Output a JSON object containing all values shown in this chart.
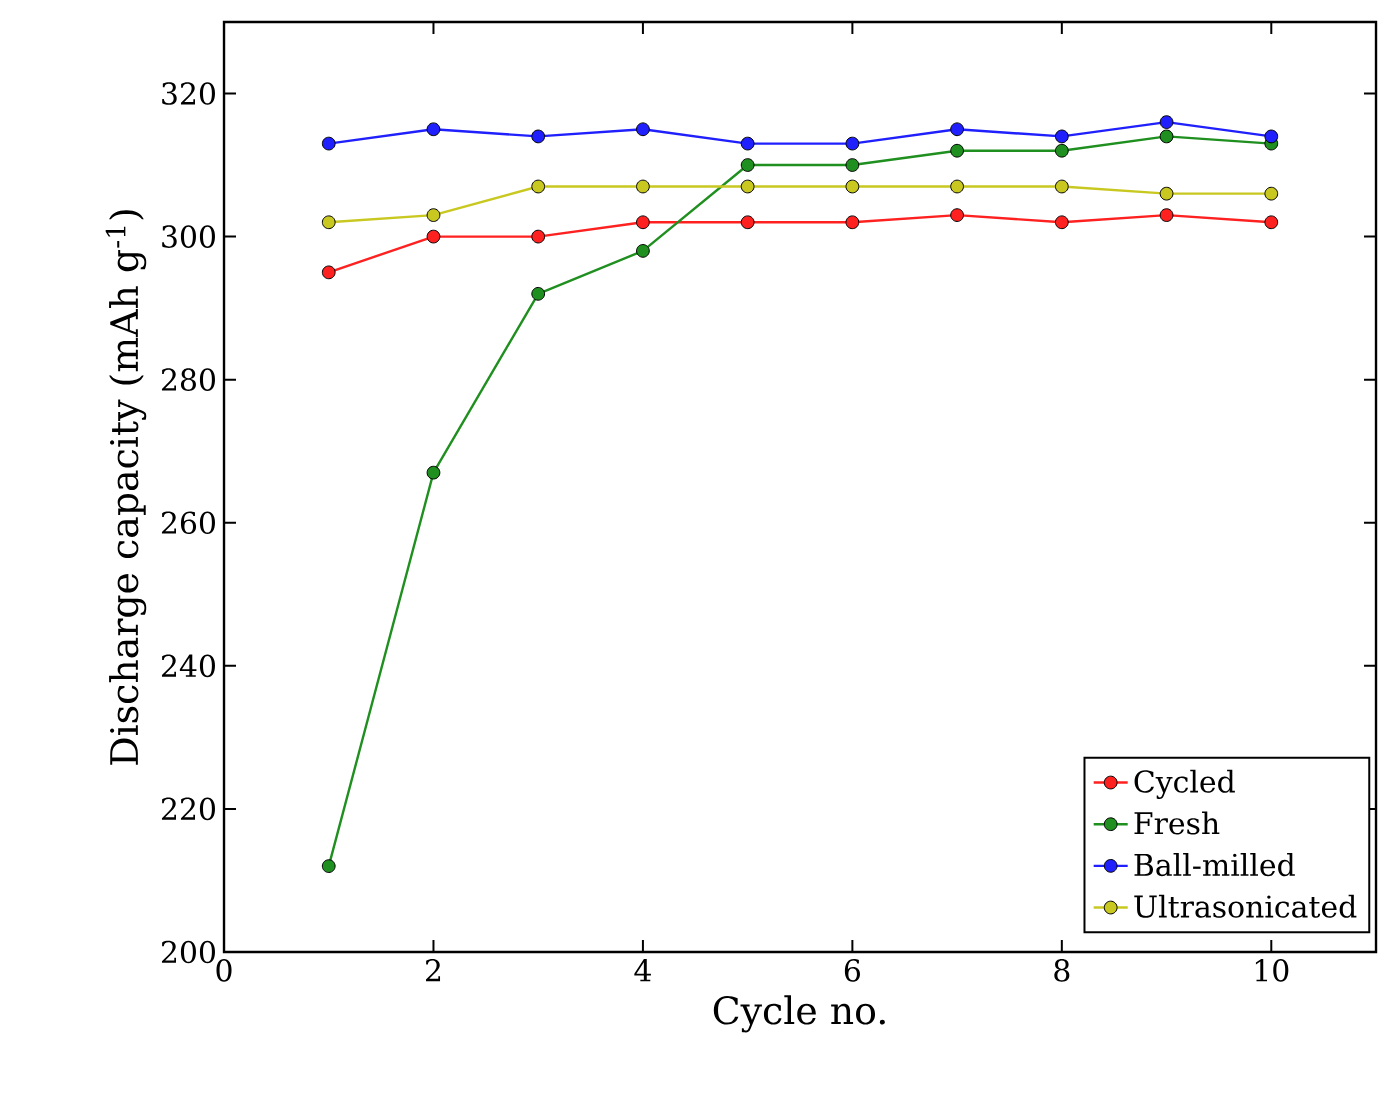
{
  "chart_data": {
    "type": "line",
    "xlabel": "Cycle no.",
    "ylabel": "Discharge capacity (mAh g$^{-1}$)",
    "x": [
      1,
      2,
      3,
      4,
      5,
      6,
      7,
      8,
      9,
      10
    ],
    "series": [
      {
        "name": "Cycled",
        "color": "#ff2020",
        "values": [
          295,
          300,
          300,
          302,
          302,
          302,
          303,
          302,
          303,
          302
        ]
      },
      {
        "name": "Fresh",
        "color": "#1f8f1f",
        "values": [
          212,
          267,
          292,
          298,
          310,
          310,
          312,
          312,
          314,
          313
        ]
      },
      {
        "name": "Ball-milled",
        "color": "#2020ff",
        "values": [
          313,
          315,
          314,
          315,
          313,
          313,
          315,
          314,
          316,
          314
        ]
      },
      {
        "name": "Ultrasonicated",
        "color": "#c8c820",
        "values": [
          302,
          303,
          307,
          307,
          307,
          307,
          307,
          307,
          306,
          306
        ]
      }
    ],
    "xlim": [
      0,
      11
    ],
    "ylim": [
      200,
      330
    ],
    "xticks": [
      0,
      2,
      4,
      6,
      8,
      10
    ],
    "yticks": [
      200,
      220,
      240,
      260,
      280,
      300,
      320
    ],
    "legend": "bottom right",
    "marker": "circle",
    "line_style": "solid",
    "grid": false
  }
}
